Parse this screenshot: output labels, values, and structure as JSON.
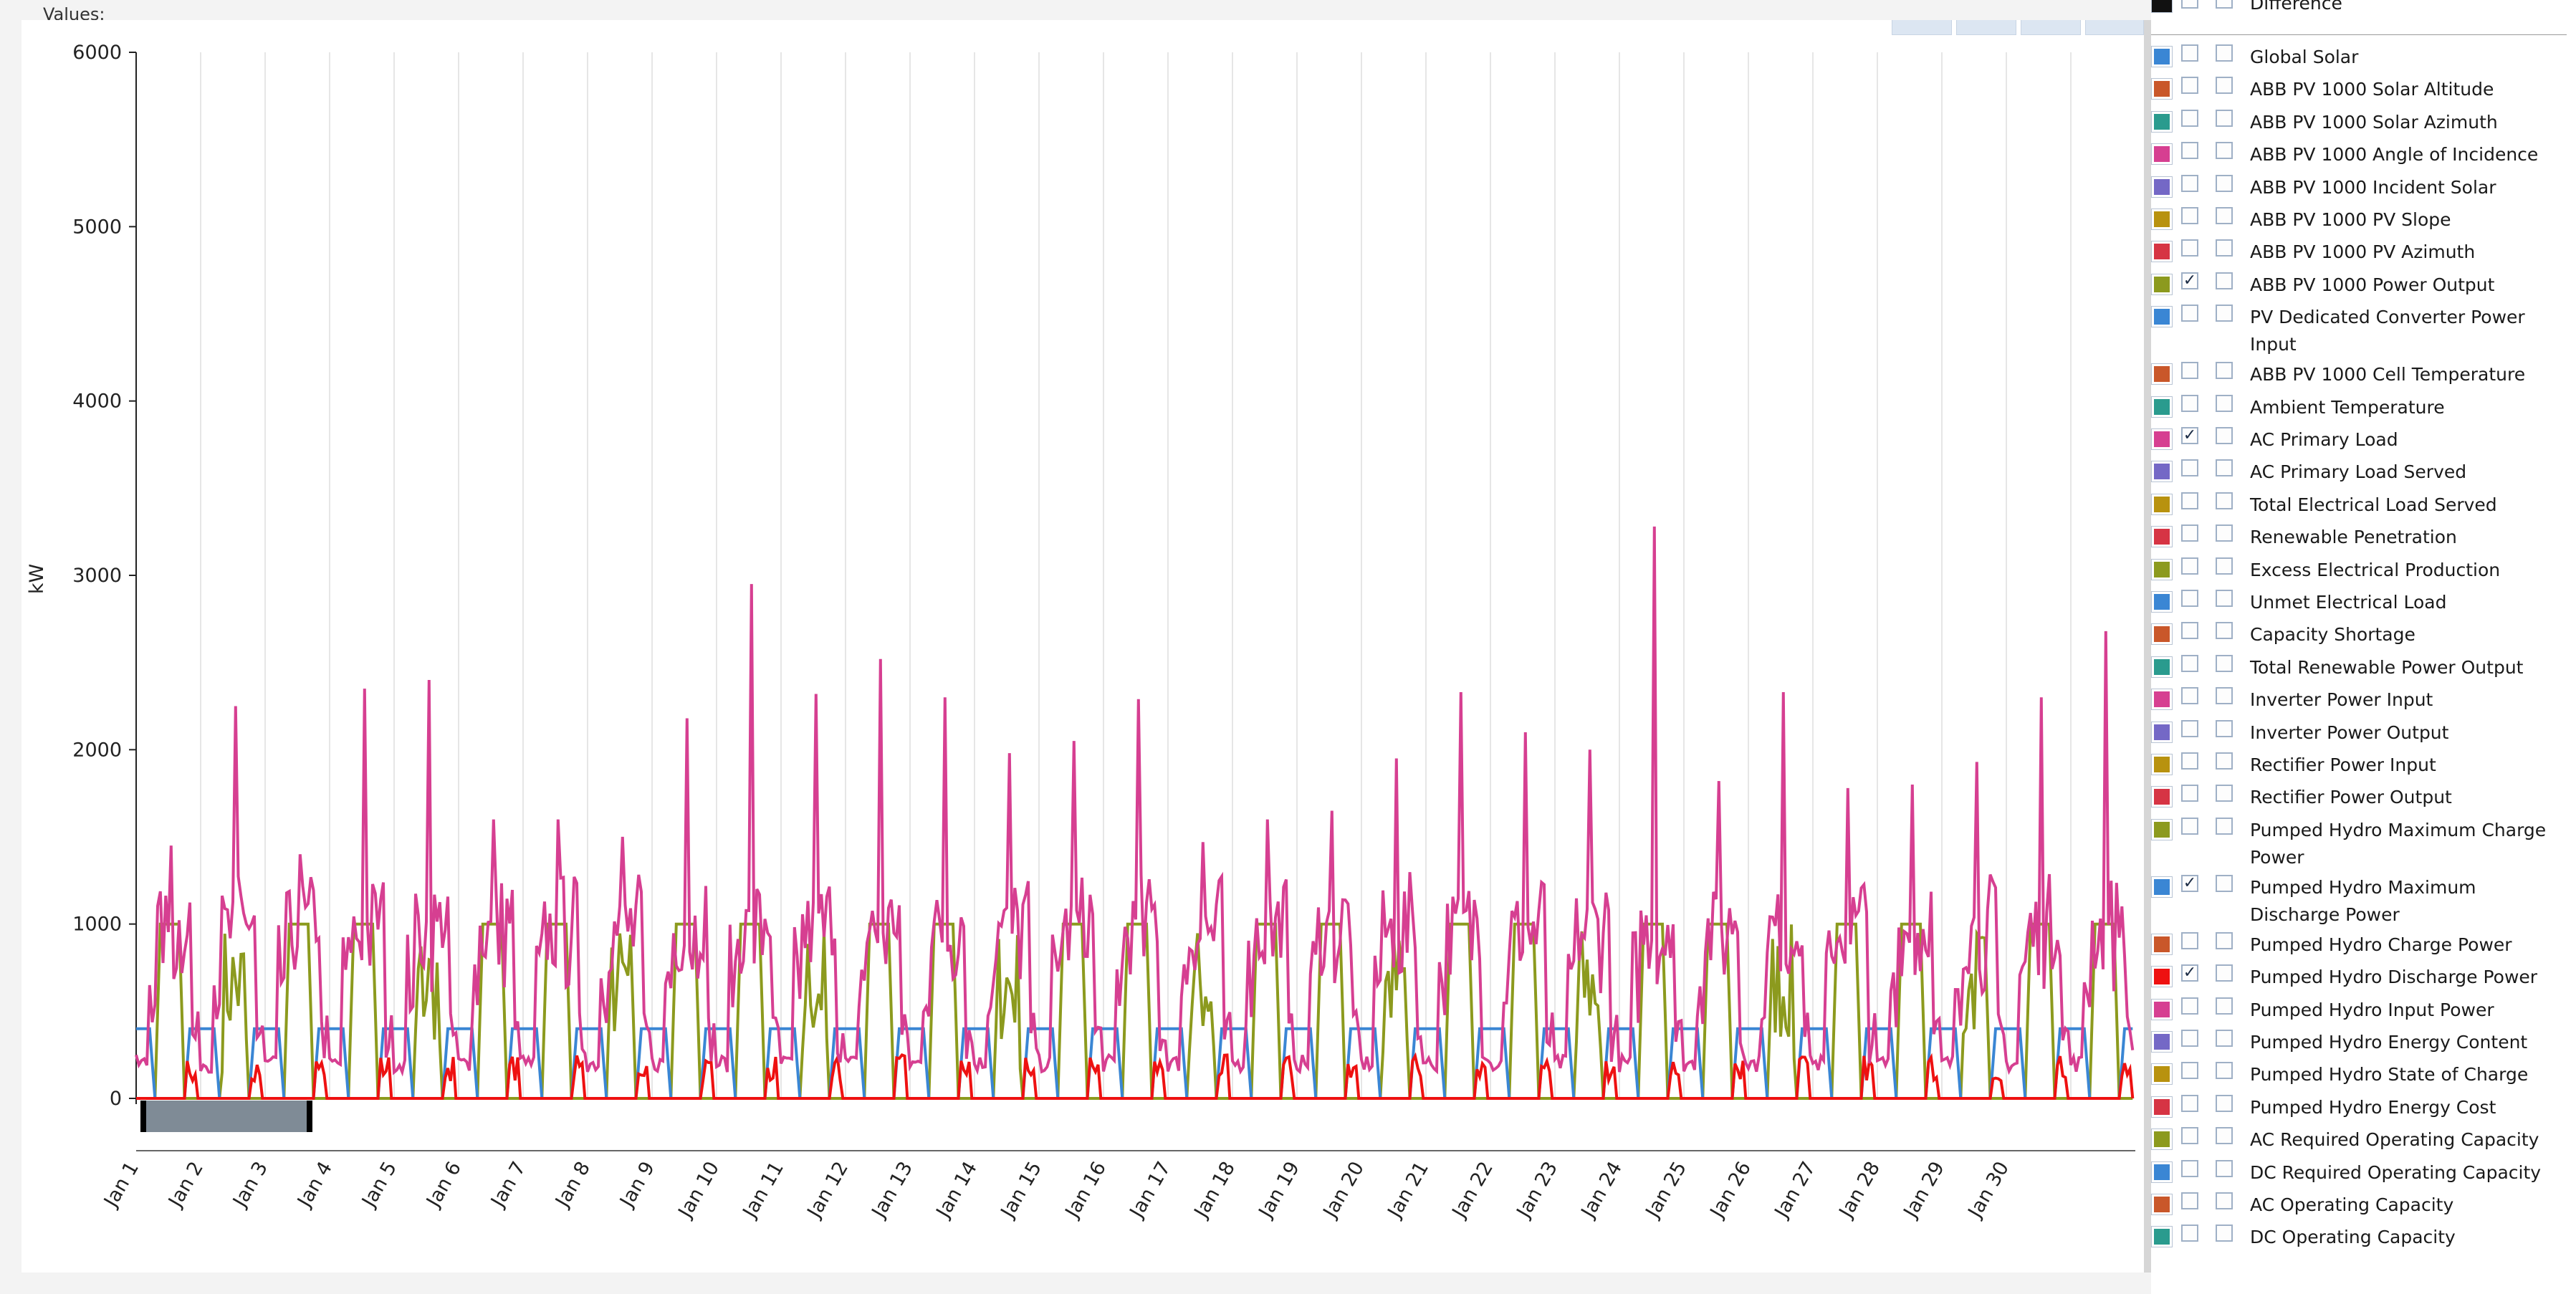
{
  "chart_data": {
    "type": "line",
    "title": "",
    "ylabel": "kW",
    "ylim": [
      0,
      6000
    ],
    "yticks": [
      0,
      1000,
      2000,
      3000,
      4000,
      5000,
      6000
    ],
    "xticks": [
      "Jan 1",
      "Jan 2",
      "Jan 3",
      "Jan 4",
      "Jan 5",
      "Jan 6",
      "Jan 7",
      "Jan 8",
      "Jan 9",
      "Jan 10",
      "Jan 11",
      "Jan 12",
      "Jan 13",
      "Jan 14",
      "Jan 15",
      "Jan 16",
      "Jan 17",
      "Jan 18",
      "Jan 19",
      "Jan 20",
      "Jan 21",
      "Jan 22",
      "Jan 23",
      "Jan 24",
      "Jan 25",
      "Jan 26",
      "Jan 27",
      "Jan 28",
      "Jan 29",
      "Jan 30"
    ],
    "grid": "vertical",
    "days": 31,
    "series": [
      {
        "name": "AC Primary Load",
        "color": "#d63f91",
        "daily_peaks": [
          1450,
          2250,
          1400,
          2350,
          2400,
          1600,
          1600,
          1500,
          2180,
          2950,
          2320,
          2520,
          2300,
          1980,
          2050,
          2290,
          1470,
          1600,
          1650,
          1950,
          2330,
          2100,
          2000,
          3280,
          1820,
          2330,
          1780,
          1800,
          1930,
          2300,
          2680
        ]
      },
      {
        "name": "ABB PV 1000 Power Output",
        "color": "#8c9a1e",
        "plateau": 1000
      },
      {
        "name": "Pumped Hydro Maximum Discharge Power",
        "color": "#3a86d4",
        "plateau": 400
      },
      {
        "name": "Pumped Hydro Discharge Power",
        "color": "#ee1111",
        "typical_peak": 250
      }
    ],
    "top_label": "Values:"
  },
  "legend": {
    "top_item": "Difference",
    "items": [
      {
        "label": "Global Solar",
        "color": "#3a86d4",
        "checked": false
      },
      {
        "label": "ABB PV 1000 Solar Altitude",
        "color": "#c9572a",
        "checked": false
      },
      {
        "label": "ABB PV 1000 Solar Azimuth",
        "color": "#2a9b8e",
        "checked": false
      },
      {
        "label": "ABB PV 1000 Angle of Incidence",
        "color": "#d63f91",
        "checked": false
      },
      {
        "label": "ABB PV 1000 Incident Solar",
        "color": "#7468c6",
        "checked": false
      },
      {
        "label": "ABB PV 1000 PV Slope",
        "color": "#b8920f",
        "checked": false
      },
      {
        "label": "ABB PV 1000 PV Azimuth",
        "color": "#d63444",
        "checked": false
      },
      {
        "label": "ABB PV 1000 Power Output",
        "color": "#8c9a1e",
        "checked": true
      },
      {
        "label": "PV Dedicated Converter Power Input",
        "color": "#3a86d4",
        "checked": false
      },
      {
        "label": "ABB PV 1000 Cell Temperature",
        "color": "#c9572a",
        "checked": false
      },
      {
        "label": "Ambient Temperature",
        "color": "#2a9b8e",
        "checked": false
      },
      {
        "label": "AC Primary Load",
        "color": "#d63f91",
        "checked": true
      },
      {
        "label": "AC Primary Load Served",
        "color": "#7468c6",
        "checked": false
      },
      {
        "label": "Total Electrical Load Served",
        "color": "#b8920f",
        "checked": false
      },
      {
        "label": "Renewable Penetration",
        "color": "#d63444",
        "checked": false
      },
      {
        "label": "Excess Electrical Production",
        "color": "#8c9a1e",
        "checked": false
      },
      {
        "label": "Unmet Electrical Load",
        "color": "#3a86d4",
        "checked": false
      },
      {
        "label": "Capacity Shortage",
        "color": "#c9572a",
        "checked": false
      },
      {
        "label": "Total Renewable Power Output",
        "color": "#2a9b8e",
        "checked": false
      },
      {
        "label": "Inverter Power Input",
        "color": "#d63f91",
        "checked": false
      },
      {
        "label": "Inverter Power Output",
        "color": "#7468c6",
        "checked": false
      },
      {
        "label": "Rectifier Power Input",
        "color": "#b8920f",
        "checked": false
      },
      {
        "label": "Rectifier Power Output",
        "color": "#d63444",
        "checked": false
      },
      {
        "label": "Pumped Hydro Maximum Charge Power",
        "color": "#8c9a1e",
        "checked": false
      },
      {
        "label": "Pumped Hydro Maximum Discharge Power",
        "color": "#3a86d4",
        "checked": true
      },
      {
        "label": "Pumped Hydro Charge Power",
        "color": "#c9572a",
        "checked": false
      },
      {
        "label": "Pumped Hydro Discharge Power",
        "color": "#ee1111",
        "checked": true
      },
      {
        "label": "Pumped Hydro Input Power",
        "color": "#d63f91",
        "checked": false
      },
      {
        "label": "Pumped Hydro Energy Content",
        "color": "#7468c6",
        "checked": false
      },
      {
        "label": "Pumped Hydro State of Charge",
        "color": "#b8920f",
        "checked": false
      },
      {
        "label": "Pumped Hydro Energy Cost",
        "color": "#d63444",
        "checked": false
      },
      {
        "label": "AC Required Operating Capacity",
        "color": "#8c9a1e",
        "checked": false
      },
      {
        "label": "DC Required Operating Capacity",
        "color": "#3a86d4",
        "checked": false
      },
      {
        "label": "AC Operating Capacity",
        "color": "#c9572a",
        "checked": false
      },
      {
        "label": "DC Operating Capacity",
        "color": "#2a9b8e",
        "checked": false
      }
    ]
  }
}
